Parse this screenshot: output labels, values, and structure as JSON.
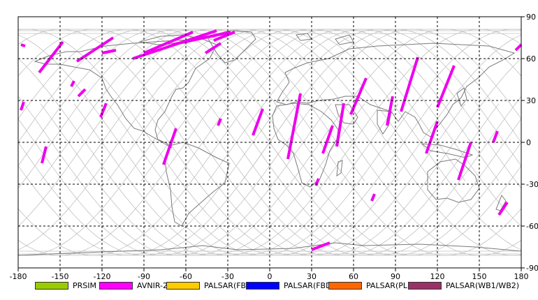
{
  "map": {
    "lon_range": [
      -180,
      180
    ],
    "lat_range": [
      -90,
      90
    ],
    "x_ticks": [
      "-180",
      "-150",
      "-120",
      "-90",
      "-60",
      "-30",
      "0",
      "30",
      "60",
      "90",
      "120",
      "150",
      "180"
    ],
    "y_ticks_right": [
      "90",
      "60",
      "30",
      "0",
      "-30",
      "-60",
      "-90"
    ],
    "colors": {
      "orbit_track": "#c0c0c0",
      "coastline": "#7a7a7a",
      "grid": "#000000",
      "swath": "#ee00ee"
    },
    "swaths": [
      {
        "sensor": "AVNIR-2",
        "from": [
          -178,
          70
        ],
        "to": [
          -175,
          69
        ]
      },
      {
        "sensor": "AVNIR-2",
        "from": [
          -165,
          50
        ],
        "to": [
          -148,
          72
        ]
      },
      {
        "sensor": "AVNIR-2",
        "from": [
          -138,
          58
        ],
        "to": [
          -112,
          75
        ]
      },
      {
        "sensor": "AVNIR-2",
        "from": [
          -120,
          64
        ],
        "to": [
          -110,
          66
        ]
      },
      {
        "sensor": "AVNIR-2",
        "from": [
          -98,
          60
        ],
        "to": [
          -38,
          80
        ]
      },
      {
        "sensor": "AVNIR-2",
        "from": [
          -90,
          64
        ],
        "to": [
          -55,
          79
        ]
      },
      {
        "sensor": "AVNIR-2",
        "from": [
          -70,
          70
        ],
        "to": [
          -28,
          79
        ]
      },
      {
        "sensor": "AVNIR-2",
        "from": [
          -40,
          73
        ],
        "to": [
          -25,
          79
        ]
      },
      {
        "sensor": "AVNIR-2",
        "from": [
          -46,
          64
        ],
        "to": [
          -35,
          71
        ]
      },
      {
        "sensor": "AVNIR-2",
        "from": [
          -178,
          23
        ],
        "to": [
          -176,
          29
        ]
      },
      {
        "sensor": "AVNIR-2",
        "from": [
          -163,
          -15
        ],
        "to": [
          -160,
          -3
        ]
      },
      {
        "sensor": "AVNIR-2",
        "from": [
          -142,
          40
        ],
        "to": [
          -140,
          44
        ]
      },
      {
        "sensor": "AVNIR-2",
        "from": [
          -137,
          33
        ],
        "to": [
          -132,
          38
        ]
      },
      {
        "sensor": "AVNIR-2",
        "from": [
          -121,
          18
        ],
        "to": [
          -117,
          28
        ]
      },
      {
        "sensor": "AVNIR-2",
        "from": [
          -76,
          -16
        ],
        "to": [
          -67,
          10
        ]
      },
      {
        "sensor": "AVNIR-2",
        "from": [
          -37,
          12
        ],
        "to": [
          -35,
          17
        ]
      },
      {
        "sensor": "AVNIR-2",
        "from": [
          -12,
          5
        ],
        "to": [
          -5,
          24
        ]
      },
      {
        "sensor": "AVNIR-2",
        "from": [
          13,
          -12
        ],
        "to": [
          22,
          35
        ]
      },
      {
        "sensor": "AVNIR-2",
        "from": [
          38,
          -8
        ],
        "to": [
          45,
          12
        ]
      },
      {
        "sensor": "AVNIR-2",
        "from": [
          33,
          -31
        ],
        "to": [
          35,
          -26
        ]
      },
      {
        "sensor": "AVNIR-2",
        "from": [
          48,
          -3
        ],
        "to": [
          53,
          28
        ]
      },
      {
        "sensor": "AVNIR-2",
        "from": [
          73,
          -42
        ],
        "to": [
          75,
          -37
        ]
      },
      {
        "sensor": "AVNIR-2",
        "from": [
          58,
          20
        ],
        "to": [
          69,
          46
        ]
      },
      {
        "sensor": "AVNIR-2",
        "from": [
          84,
          12
        ],
        "to": [
          88,
          33
        ]
      },
      {
        "sensor": "AVNIR-2",
        "from": [
          94,
          22
        ],
        "to": [
          106,
          61
        ]
      },
      {
        "sensor": "AVNIR-2",
        "from": [
          112,
          -8
        ],
        "to": [
          120,
          15
        ]
      },
      {
        "sensor": "AVNIR-2",
        "from": [
          120,
          25
        ],
        "to": [
          132,
          55
        ]
      },
      {
        "sensor": "AVNIR-2",
        "from": [
          135,
          -27
        ],
        "to": [
          144,
          0
        ]
      },
      {
        "sensor": "AVNIR-2",
        "from": [
          160,
          0
        ],
        "to": [
          163,
          8
        ]
      },
      {
        "sensor": "AVNIR-2",
        "from": [
          164,
          -52
        ],
        "to": [
          170,
          -43
        ]
      },
      {
        "sensor": "AVNIR-2",
        "from": [
          176,
          66
        ],
        "to": [
          180,
          70
        ]
      },
      {
        "sensor": "AVNIR-2",
        "from": [
          30,
          -77
        ],
        "to": [
          43,
          -72
        ]
      }
    ]
  },
  "legend": [
    {
      "label": "PRSIM",
      "color": "#99cc00"
    },
    {
      "label": "AVNIR-2",
      "color": "#ff00ff"
    },
    {
      "label": "PALSAR(FBS)",
      "color": "#ffcc00"
    },
    {
      "label": "PALSAR(FBD)",
      "color": "#0000ff"
    },
    {
      "label": "PALSAR(PLR)",
      "color": "#ff6600"
    },
    {
      "label": "PALSAR(WB1/WB2)",
      "color": "#993366"
    }
  ]
}
